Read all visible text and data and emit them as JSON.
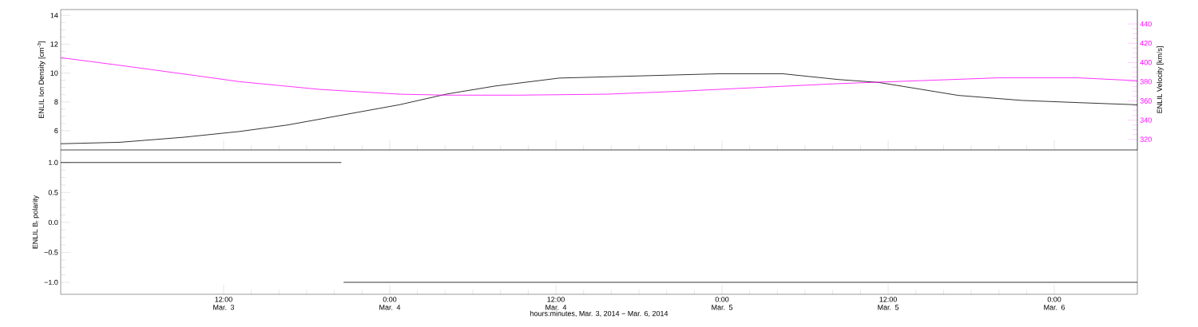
{
  "chart_data": [
    {
      "type": "line",
      "ylabel": "ENLIL Ion Density [cm$^{-3}$]",
      "y2label": "ENLIL Velocity [km/s]",
      "tick_labels": "y",
      "xlim": [
        "2014-03-03T00:14",
        "2014-03-06T06:00"
      ],
      "xticks": [
        {
          "value": "2014-03-03T12:00",
          "label": null
        },
        {
          "value": "2014-03-04T00:00",
          "label": null
        },
        {
          "value": "2014-03-04T12:00",
          "label": null
        },
        {
          "value": "2014-03-05T00:00",
          "label": null
        },
        {
          "value": "2014-03-05T12:00",
          "label": null
        },
        {
          "value": "2014-03-06T00:00",
          "label": null
        }
      ],
      "ylim": [
        4.67,
        14.4
      ],
      "yticks": [
        6,
        8,
        10,
        12,
        14
      ],
      "y2lim": [
        309,
        455
      ],
      "y2ticks": [
        320,
        340,
        360,
        380,
        400,
        420,
        440
      ],
      "series": [
        {
          "color": "#000000",
          "x": [
            "2014-03-03T00:14",
            "2014-03-03T04:30",
            "2014-03-03T09:07",
            "2014-03-03T13:09",
            "2014-03-03T16:37",
            "2014-03-03T20:39",
            "2014-03-04T00:41",
            "2014-03-04T04:09",
            "2014-03-04T07:37",
            "2014-03-04T12:14",
            "2014-03-04T18:00",
            "2014-03-04T23:46",
            "2014-03-05T04:23",
            "2014-03-05T08:25",
            "2014-03-05T11:18",
            "2014-03-05T14:12",
            "2014-03-05T17:04",
            "2014-03-05T21:42",
            "2014-03-06T01:44",
            "2014-03-06T06:00"
          ],
          "values": [
            5.1,
            5.2,
            5.55,
            5.95,
            6.4,
            7.1,
            7.8,
            8.55,
            9.1,
            9.65,
            9.8,
            9.95,
            9.95,
            9.55,
            9.35,
            8.9,
            8.45,
            8.1,
            7.95,
            7.8
          ]
        },
        {
          "color": "#ff00ff",
          "axis": "y2",
          "x": [
            "2014-03-03T00:14",
            "2014-03-03T04:30",
            "2014-03-03T09:07",
            "2014-03-03T13:09",
            "2014-03-03T18:55",
            "2014-03-04T00:41",
            "2014-03-04T04:09",
            "2014-03-04T09:21",
            "2014-03-04T15:42",
            "2014-03-04T20:53",
            "2014-03-05T02:39",
            "2014-03-05T08:25",
            "2014-03-05T14:12",
            "2014-03-05T20:00",
            "2014-03-06T01:44",
            "2014-03-06T06:00"
          ],
          "values": [
            405,
            397,
            388,
            380,
            372,
            367,
            366,
            366,
            367,
            370,
            374,
            378,
            381,
            384,
            384,
            381
          ]
        }
      ]
    },
    {
      "type": "line",
      "ylabel": "ENLIL B$_{r}$ polarity",
      "xlabel": "hours:minutes, Mar.  3, 2014 − Mar.  6, 2014",
      "xlim": [
        "2014-03-03T00:14",
        "2014-03-06T06:00"
      ],
      "xticks": [
        {
          "value": "2014-03-03T12:00",
          "label": "12:00 Mar. 3"
        },
        {
          "value": "2014-03-04T00:00",
          "label": "0:00 Mar. 4"
        },
        {
          "value": "2014-03-04T12:00",
          "label": "12:00 Mar. 4"
        },
        {
          "value": "2014-03-05T00:00",
          "label": "0:00 Mar. 5"
        },
        {
          "value": "2014-03-05T12:00",
          "label": "12:00 Mar. 5"
        },
        {
          "value": "2014-03-06T00:00",
          "label": "0:00 Mar. 6"
        }
      ],
      "ylim": [
        -1.2,
        1.21
      ],
      "yticks": [
        {
          "value": -1,
          "label": "−1.0"
        },
        {
          "value": -0.5,
          "label": "−0.5"
        },
        {
          "value": 0,
          "label": "0.0"
        },
        {
          "value": 0.5,
          "label": "0.5"
        },
        {
          "value": 1,
          "label": "1.0"
        }
      ],
      "series": [
        {
          "color": "#000000",
          "x": [
            "2014-03-03T00:14",
            "2014-03-03T20:30"
          ],
          "values": [
            1,
            1
          ]
        },
        {
          "color": "#000000",
          "x": [
            "2014-03-03T20:40",
            "2014-03-06T06:00"
          ],
          "values": [
            -1,
            -1
          ]
        }
      ]
    }
  ]
}
